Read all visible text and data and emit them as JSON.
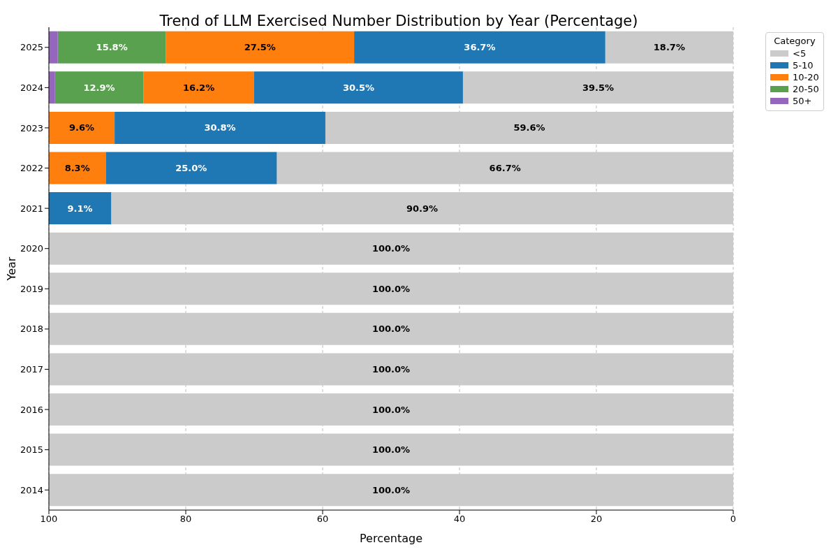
{
  "chart_data": {
    "type": "bar",
    "orientation": "horizontal",
    "stacked": true,
    "title": "Trend of LLM Exercised Number Distribution by Year (Percentage)",
    "xlabel": "Percentage",
    "ylabel": "Year",
    "legend_title": "Category",
    "legend": "top right",
    "grid": "x",
    "categories": [
      "2025",
      "2024",
      "2023",
      "2022",
      "2021",
      "2020",
      "2019",
      "2018",
      "2017",
      "2016",
      "2015",
      "2014"
    ],
    "xlim": [
      100,
      0
    ],
    "xticks": [
      100,
      80,
      60,
      40,
      20,
      0
    ],
    "series": [
      {
        "name": "<5",
        "color": "#cbcbcb",
        "values": [
          18.7,
          39.5,
          59.6,
          66.7,
          90.9,
          100,
          100,
          100,
          100,
          100,
          100,
          100
        ],
        "value_labels": [
          "18.7%",
          "39.5%",
          "59.6%",
          "66.7%",
          "90.9%",
          "100.0%",
          "100.0%",
          "100.0%",
          "100.0%",
          "100.0%",
          "100.0%",
          "100.0%"
        ]
      },
      {
        "name": "5-10",
        "color": "#1f77b4",
        "values": [
          36.7,
          30.5,
          30.8,
          25.0,
          9.1,
          0,
          0,
          0,
          0,
          0,
          0,
          0
        ],
        "value_labels": [
          "36.7%",
          "30.5%",
          "30.8%",
          "25.0%",
          "9.1%",
          null,
          null,
          null,
          null,
          null,
          null,
          null
        ]
      },
      {
        "name": "10-20",
        "color": "#ff7f0e",
        "values": [
          27.5,
          16.2,
          9.6,
          8.3,
          0,
          0,
          0,
          0,
          0,
          0,
          0,
          0
        ],
        "value_labels": [
          "27.5%",
          "16.2%",
          "9.6%",
          "8.3%",
          null,
          null,
          null,
          null,
          null,
          null,
          null,
          null
        ]
      },
      {
        "name": "20-50",
        "color": "#59a14f",
        "values": [
          15.8,
          12.9,
          0,
          0,
          0,
          0,
          0,
          0,
          0,
          0,
          0,
          0
        ],
        "value_labels": [
          "15.8%",
          "12.9%",
          null,
          null,
          null,
          null,
          null,
          null,
          null,
          null,
          null,
          null
        ]
      },
      {
        "name": "50+",
        "color": "#9467bd",
        "values": [
          1.3,
          0.9,
          0,
          0,
          0,
          0,
          0,
          0,
          0,
          0,
          0,
          0
        ],
        "value_labels": [
          null,
          null,
          null,
          null,
          null,
          null,
          null,
          null,
          null,
          null,
          null,
          null
        ]
      }
    ]
  }
}
